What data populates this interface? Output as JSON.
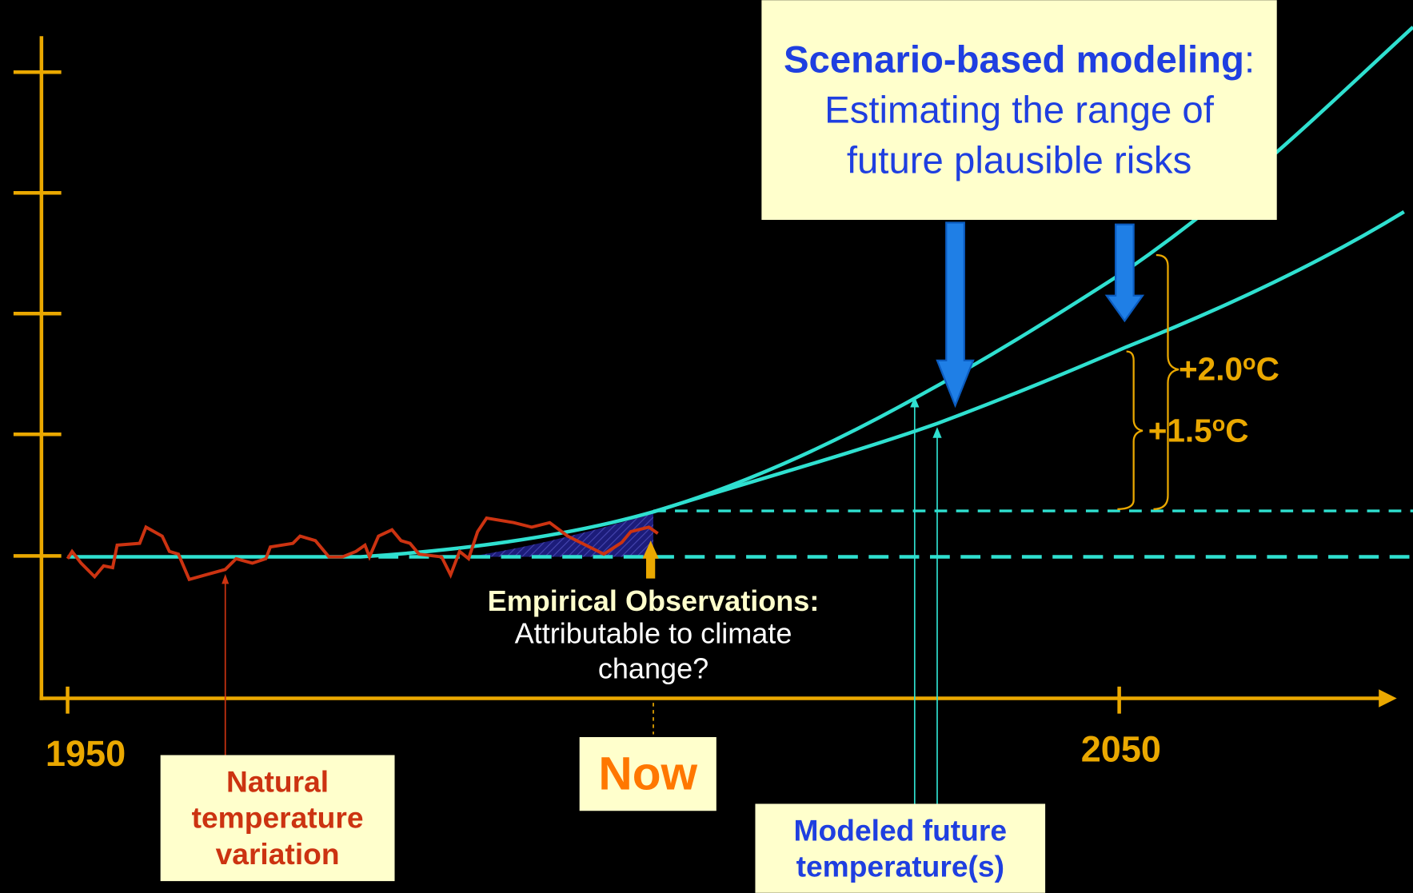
{
  "axis": {
    "x_start_label": "1950",
    "x_end_label": "2050",
    "now_label": "Now"
  },
  "natural_box": {
    "text": "Natural temperature variation"
  },
  "empirical": {
    "heading": "Empirical Observations:",
    "text": "Attributable to climate change?"
  },
  "scenario_box": {
    "bold": "Scenario-based modeling",
    "text": ": Estimating the range of future plausible risks"
  },
  "thresholds": [
    {
      "value": "+2.0",
      "sup": "o",
      "unit": "C"
    },
    {
      "value": "+1.5",
      "sup": "o",
      "unit": "C"
    }
  ],
  "modeled_box": {
    "text": "Modeled future temperature(s)"
  }
}
